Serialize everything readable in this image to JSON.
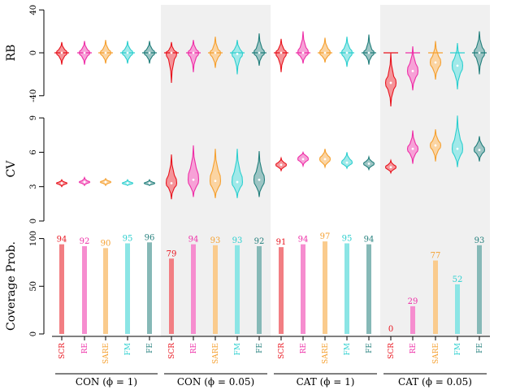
{
  "chart_data": {
    "type": "violin",
    "groups": [
      {
        "label": "CON (ϕ = 1)",
        "shaded": false
      },
      {
        "label": "CON (ϕ = 0.05)",
        "shaded": true
      },
      {
        "label": "CAT (ϕ = 1)",
        "shaded": false
      },
      {
        "label": "CAT (ϕ = 0.05)",
        "shaded": true
      }
    ],
    "methods": [
      "SCR",
      "RE",
      "SARE",
      "FM",
      "FE"
    ],
    "colors": {
      "SCR": "#e8141e",
      "RE": "#ee2fa7",
      "SARE": "#f5a030",
      "FM": "#2ccfcf",
      "FE": "#237f7c"
    },
    "panels": {
      "rb": {
        "ylabel": "RB",
        "ylim": [
          -40,
          40
        ],
        "ticks": [
          "-40",
          "0",
          "40"
        ],
        "tick_values": [
          -40,
          0,
          40
        ],
        "reference_line": 0,
        "series": [
          [
            {
              "median": 0,
              "q1": -3,
              "q3": 3,
              "low": -11,
              "high": 10
            },
            {
              "median": 0,
              "q1": -3,
              "q3": 3,
              "low": -11,
              "high": 11
            },
            {
              "median": 0,
              "q1": -3,
              "q3": 3,
              "low": -10,
              "high": 12
            },
            {
              "median": 0,
              "q1": -3,
              "q3": 3,
              "low": -10,
              "high": 11
            },
            {
              "median": 0,
              "q1": -3,
              "q3": 3,
              "low": -10,
              "high": 11
            }
          ],
          [
            {
              "median": 0,
              "q1": -6,
              "q3": 2,
              "low": -28,
              "high": 10
            },
            {
              "median": 0,
              "q1": -4,
              "q3": 3,
              "low": -18,
              "high": 12
            },
            {
              "median": 0,
              "q1": -4,
              "q3": 3,
              "low": -14,
              "high": 15
            },
            {
              "median": -1,
              "q1": -5,
              "q3": 3,
              "low": -20,
              "high": 12
            },
            {
              "median": 0,
              "q1": -3,
              "q3": 4,
              "low": -12,
              "high": 18
            }
          ],
          [
            {
              "median": 0,
              "q1": -5,
              "q3": 3,
              "low": -18,
              "high": 13
            },
            {
              "median": 0,
              "q1": -3,
              "q3": 5,
              "low": -10,
              "high": 20
            },
            {
              "median": 0,
              "q1": -3,
              "q3": 4,
              "low": -9,
              "high": 14
            },
            {
              "median": 0,
              "q1": -4,
              "q3": 4,
              "low": -13,
              "high": 15
            },
            {
              "median": 0,
              "q1": -3,
              "q3": 3,
              "low": -11,
              "high": 17
            }
          ],
          [
            {
              "median": -28,
              "q1": -34,
              "q3": -22,
              "low": -50,
              "high": 0
            },
            {
              "median": -17,
              "q1": -23,
              "q3": -10,
              "low": -35,
              "high": 6
            },
            {
              "median": -9,
              "q1": -14,
              "q3": -3,
              "low": -25,
              "high": 11
            },
            {
              "median": -12,
              "q1": -19,
              "q3": -5,
              "low": -34,
              "high": 9
            },
            {
              "median": 0,
              "q1": -5,
              "q3": 5,
              "low": -20,
              "high": 20
            }
          ]
        ]
      },
      "cv": {
        "ylabel": "CV",
        "ylim": [
          0,
          9
        ],
        "ticks": [
          "0",
          "3",
          "6",
          "9"
        ],
        "tick_values": [
          0,
          3,
          6,
          9
        ],
        "series": [
          [
            {
              "median": 3.3,
              "q1": 3.2,
              "q3": 3.4,
              "low": 3.0,
              "high": 3.6
            },
            {
              "median": 3.4,
              "q1": 3.3,
              "q3": 3.5,
              "low": 3.1,
              "high": 3.8
            },
            {
              "median": 3.4,
              "q1": 3.3,
              "q3": 3.5,
              "low": 3.1,
              "high": 3.7
            },
            {
              "median": 3.3,
              "q1": 3.2,
              "q3": 3.4,
              "low": 3.1,
              "high": 3.6
            },
            {
              "median": 3.3,
              "q1": 3.2,
              "q3": 3.4,
              "low": 3.1,
              "high": 3.6
            }
          ],
          [
            {
              "median": 3.3,
              "q1": 2.9,
              "q3": 4.0,
              "low": 1.9,
              "high": 5.8
            },
            {
              "median": 3.6,
              "q1": 3.0,
              "q3": 4.6,
              "low": 2.1,
              "high": 6.6
            },
            {
              "median": 3.5,
              "q1": 2.9,
              "q3": 4.4,
              "low": 2.0,
              "high": 6.3
            },
            {
              "median": 3.4,
              "q1": 2.9,
              "q3": 4.3,
              "low": 2.0,
              "high": 6.3
            },
            {
              "median": 3.6,
              "q1": 3.0,
              "q3": 4.3,
              "low": 2.1,
              "high": 6.1
            }
          ],
          [
            {
              "median": 4.9,
              "q1": 4.7,
              "q3": 5.1,
              "low": 4.4,
              "high": 5.5
            },
            {
              "median": 5.4,
              "q1": 5.2,
              "q3": 5.7,
              "low": 4.8,
              "high": 6.0
            },
            {
              "median": 5.4,
              "q1": 5.1,
              "q3": 5.7,
              "low": 4.7,
              "high": 6.3
            },
            {
              "median": 5.1,
              "q1": 4.9,
              "q3": 5.4,
              "low": 4.6,
              "high": 6.0
            },
            {
              "median": 5.0,
              "q1": 4.8,
              "q3": 5.2,
              "low": 4.5,
              "high": 5.6
            }
          ],
          [
            {
              "median": 4.7,
              "q1": 4.5,
              "q3": 4.9,
              "low": 4.2,
              "high": 5.3
            },
            {
              "median": 6.3,
              "q1": 5.9,
              "q3": 6.7,
              "low": 5.0,
              "high": 7.9
            },
            {
              "median": 6.6,
              "q1": 6.2,
              "q3": 7.0,
              "low": 5.2,
              "high": 8.0
            },
            {
              "median": 6.3,
              "q1": 5.7,
              "q3": 7.1,
              "low": 4.7,
              "high": 9.2
            },
            {
              "median": 6.2,
              "q1": 5.9,
              "q3": 6.6,
              "low": 5.2,
              "high": 7.4
            }
          ]
        ]
      },
      "coverage": {
        "ylabel": "Coverage Prob.",
        "ylim": [
          0,
          100
        ],
        "ticks": [
          "0",
          "50",
          "100"
        ],
        "tick_values": [
          0,
          50,
          100
        ],
        "series": [
          [
            94,
            92,
            90,
            95,
            96
          ],
          [
            79,
            94,
            93,
            93,
            92
          ],
          [
            91,
            94,
            97,
            95,
            94
          ],
          [
            0,
            29,
            77,
            52,
            93
          ]
        ]
      }
    }
  }
}
